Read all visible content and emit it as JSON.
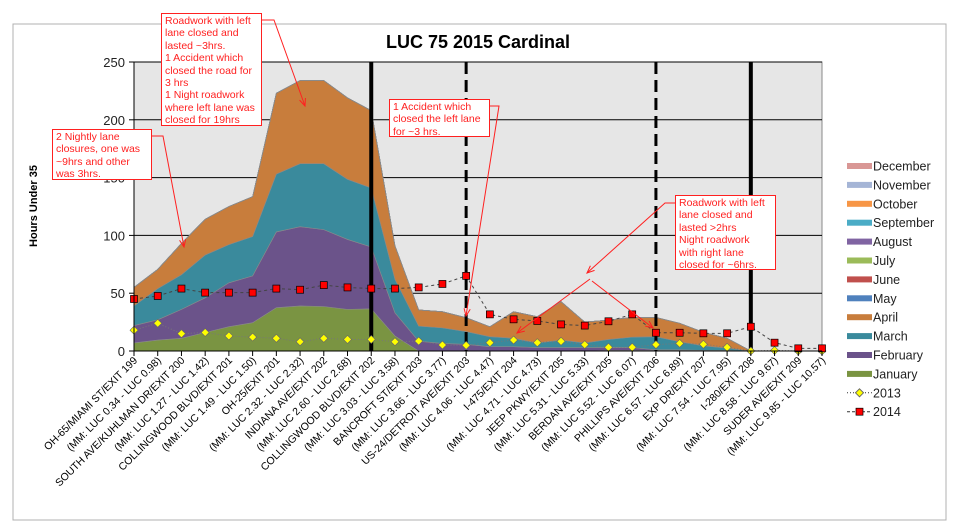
{
  "chart_data": {
    "type": "area",
    "stacked": true,
    "title": "LUC 75 2015 Cardinal",
    "xlabel": "",
    "ylabel": "Hours Under 35",
    "ylim": [
      0,
      250
    ],
    "yticks": [
      0,
      50,
      100,
      150,
      200,
      250
    ],
    "grid": true,
    "legend_position": "right",
    "categories": [
      "OH-65/MIAMI ST/EXIT 199",
      "(MM: LUC 0.34 - LUC 0.98)",
      "SOUTH AVE/KUHLMAN DR/EXIT 200",
      "(MM: LUC 1.27 - LUC 1.42)",
      "COLLINGWOOD BLVD/EXIT 201",
      "(MM: LUC 1.49 - LUC 1.50)",
      "OH-25/EXIT 201",
      "(MM: LUC 2.32 - LUC 2.32)",
      "INDIANA AVE/EXIT 202",
      "(MM: LUC 2.60 - LUC 2.68)",
      "COLLINGWOOD BLVD/EXIT 202",
      "(MM: LUC 3.03 - LUC 3.58)",
      "BANCROFT ST/EXIT 203",
      "(MM: LUC 3.66 - LUC 3.77)",
      "US-24/DETROIT AVE/EXIT 203",
      "(MM: LUC 4.06 - LUC 4.47)",
      "I-475/EXIT 204",
      "(MM: LUC 4.71 - LUC 4.73)",
      "JEEP PKWY/EXIT 205",
      "(MM: LUC 5.31 - LUC 5.33)",
      "BERDAN AVE/EXIT 205",
      "(MM: LUC 5.52 - LUC 6.07)",
      "PHILLIPS AVE/EXIT 206",
      "(MM: LUC 6.57 - LUC 6.89)",
      "EXP DR/EXIT 207",
      "(MM: LUC 7.54 - LUC 7.95)",
      "I-280/EXIT 208",
      "(MM: LUC 8.58 - LUC 9.67)",
      "SUDER AVE/EXIT 209",
      "(MM: LUC 9.85 - LUC 10.57)"
    ],
    "series": [
      {
        "name": "January",
        "kind": "area",
        "color": "#7a9442",
        "values": [
          7,
          9.5,
          11,
          16,
          21,
          24.5,
          37.5,
          39,
          38.5,
          36,
          36.5,
          13,
          0,
          0,
          0,
          0,
          0,
          0,
          0,
          0,
          0.5,
          0.5,
          0.5,
          0.5,
          0,
          0,
          0,
          0,
          0,
          0
        ]
      },
      {
        "name": "February",
        "kind": "area",
        "color": "#6b538a",
        "values": [
          15,
          17.5,
          25,
          30,
          38,
          40.5,
          65.5,
          68.5,
          66.5,
          60.5,
          53.5,
          20,
          8.5,
          6.5,
          5.8,
          3.7,
          3.7,
          3,
          3,
          3,
          2.5,
          2.5,
          0.5,
          0.5,
          0.5,
          0.5,
          0,
          0,
          0,
          0
        ]
      },
      {
        "name": "March",
        "kind": "area",
        "color": "#3a8a9c",
        "values": [
          17,
          27,
          30,
          37,
          33,
          34,
          50,
          54.5,
          57,
          52,
          51,
          29,
          13,
          13.5,
          11,
          8.7,
          7.3,
          4,
          6.5,
          4,
          7,
          9,
          11.4,
          7,
          4,
          2,
          0,
          0,
          0,
          0
        ]
      },
      {
        "name": "April",
        "kind": "area",
        "color": "#c87d3c",
        "values": [
          16,
          16.6,
          27,
          31,
          33,
          34.5,
          70,
          72,
          72,
          70.5,
          67,
          29,
          14,
          14,
          12,
          8.6,
          23,
          22.7,
          33.2,
          18,
          16.8,
          17,
          16.6,
          16,
          11.7,
          8.5,
          0,
          0,
          0,
          0
        ]
      },
      {
        "name": "May",
        "kind": "area",
        "color": "#4f81bd",
        "values": [
          0,
          0,
          0,
          0,
          0,
          0,
          0,
          0,
          0,
          0,
          0,
          0,
          0,
          0,
          0,
          0,
          0,
          0,
          0,
          0,
          0,
          0,
          0,
          0,
          0,
          0,
          0,
          0,
          0,
          0
        ]
      },
      {
        "name": "June",
        "kind": "area",
        "color": "#c0504d",
        "values": [
          0,
          0,
          0,
          0,
          0,
          0,
          0,
          0,
          0,
          0,
          0,
          0,
          0,
          0,
          0,
          0,
          0,
          0,
          0,
          0,
          0,
          0,
          0,
          0,
          0,
          0,
          0,
          0,
          0,
          0
        ]
      },
      {
        "name": "July",
        "kind": "area",
        "color": "#9bbb59",
        "values": [
          0,
          0,
          0,
          0,
          0,
          0,
          0,
          0,
          0,
          0,
          0,
          0,
          0,
          0,
          0,
          0,
          0,
          0,
          0,
          0,
          0,
          0,
          0,
          0,
          0,
          0,
          0,
          0,
          0,
          0
        ]
      },
      {
        "name": "August",
        "kind": "area",
        "color": "#8064a2",
        "values": [
          0,
          0,
          0,
          0,
          0,
          0,
          0,
          0,
          0,
          0,
          0,
          0,
          0,
          0,
          0,
          0,
          0,
          0,
          0,
          0,
          0,
          0,
          0,
          0,
          0,
          0,
          0,
          0,
          0,
          0
        ]
      },
      {
        "name": "September",
        "kind": "area",
        "color": "#4bacc6",
        "values": [
          0,
          0,
          0,
          0,
          0,
          0,
          0,
          0,
          0,
          0,
          0,
          0,
          0,
          0,
          0,
          0,
          0,
          0,
          0,
          0,
          0,
          0,
          0,
          0,
          0,
          0,
          0,
          0,
          0,
          0
        ]
      },
      {
        "name": "October",
        "kind": "area",
        "color": "#f79646",
        "values": [
          0,
          0,
          0,
          0,
          0,
          0,
          0,
          0,
          0,
          0,
          0,
          0,
          0,
          0,
          0,
          0,
          0,
          0,
          0,
          0,
          0,
          0,
          0,
          0,
          0,
          0,
          0,
          0,
          0,
          0
        ]
      },
      {
        "name": "November",
        "kind": "area",
        "color": "#a5b5d6",
        "values": [
          0,
          0,
          0,
          0,
          0,
          0,
          0,
          0,
          0,
          0,
          0,
          0,
          0,
          0,
          0,
          0,
          0,
          0,
          0,
          0,
          0,
          0,
          0,
          0,
          0,
          0,
          0,
          0,
          0,
          0
        ]
      },
      {
        "name": "December",
        "kind": "area",
        "color": "#d99795",
        "values": [
          0,
          0,
          0,
          0,
          0,
          0,
          0,
          0,
          0,
          0,
          0,
          0,
          0,
          0,
          0,
          0,
          0,
          0,
          0,
          0,
          0,
          0,
          0,
          0,
          0,
          0,
          0,
          0,
          0,
          0
        ]
      },
      {
        "name": "2013",
        "kind": "line",
        "marker": "diamond",
        "color": "#ffff00",
        "values": [
          18,
          24,
          15,
          16,
          13,
          12,
          11,
          8,
          11,
          10,
          10,
          8,
          8.6,
          5.2,
          4.9,
          7.2,
          9.5,
          7.2,
          8.4,
          5.5,
          3.2,
          3.2,
          5.5,
          6.6,
          5.8,
          3.2,
          0,
          0.5,
          0,
          0
        ]
      },
      {
        "name": "2014",
        "kind": "line",
        "marker": "square",
        "color": "#ff0000",
        "values": [
          45,
          47.6,
          54,
          50.5,
          50.5,
          50.5,
          54,
          53,
          57,
          55,
          54,
          54,
          55,
          58,
          65,
          31.7,
          27.4,
          26,
          23,
          22,
          25.7,
          31.7,
          15.8,
          15.8,
          15.3,
          15.3,
          21,
          7.2,
          2.3,
          2.3
        ]
      }
    ],
    "legend_order": [
      "December",
      "November",
      "October",
      "September",
      "August",
      "July",
      "June",
      "May",
      "April",
      "March",
      "February",
      "January",
      "2013",
      "2014"
    ],
    "reference_lines": [
      {
        "category": "COLLINGWOOD BLVD/EXIT 202",
        "style": "solid"
      },
      {
        "category": "US-24/DETROIT AVE/EXIT 203",
        "style": "dashed"
      },
      {
        "category": "PHILLIPS AVE/EXIT 206",
        "style": "dashed"
      },
      {
        "category": "I-280/EXIT 208",
        "style": "solid"
      }
    ],
    "annotations": [
      {
        "id": "a1",
        "text": [
          "Roadwork with left",
          "lane closed and",
          "lasted ~3hrs.",
          "1 Accident which",
          "closed the road for",
          "3 hrs",
          "1 Night roadwork",
          "where left lane was",
          "closed for 19hrs"
        ]
      },
      {
        "id": "a2",
        "text": [
          "2 Nightly lane",
          "closures, one was",
          "~9hrs and other",
          "was 3hrs."
        ]
      },
      {
        "id": "a3",
        "text": [
          "1 Accident which",
          "closed the left lane",
          "for ~3 hrs."
        ]
      },
      {
        "id": "a4",
        "text": [
          "Roadwork with left",
          "lane closed and",
          "lasted >2hrs",
          "Night roadwork",
          "with right lane",
          "closed for ~6hrs."
        ]
      }
    ]
  }
}
